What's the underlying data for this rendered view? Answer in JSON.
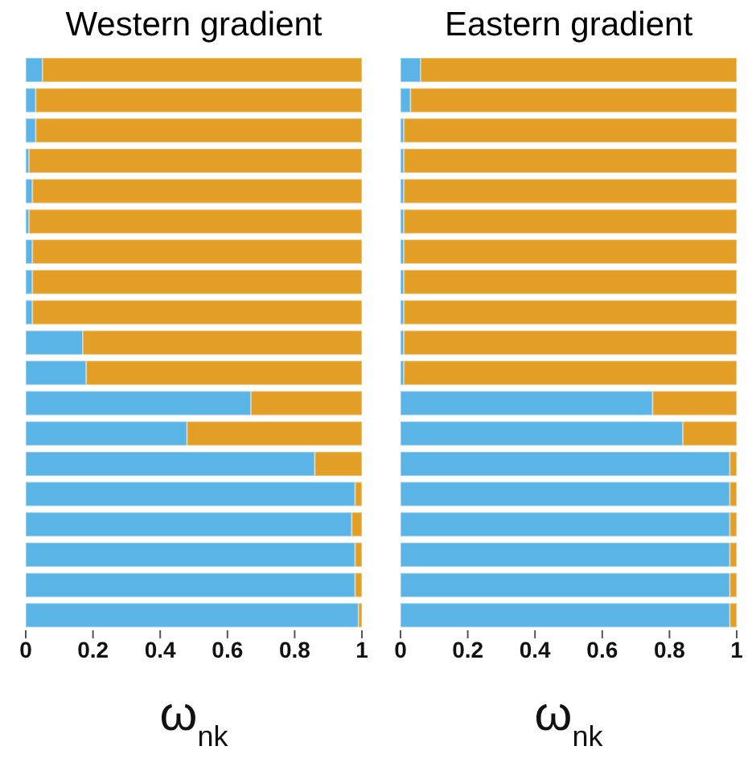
{
  "chart_data": [
    {
      "type": "bar",
      "title": "Western gradient",
      "xlabel": "ω$_{nk}$",
      "orientation": "horizontal",
      "stacked": true,
      "tick_labels": "x",
      "categories": [
        null,
        null,
        null,
        null,
        null,
        null,
        null,
        null,
        null,
        null,
        null,
        null,
        null,
        null,
        null,
        null,
        null,
        null,
        null
      ],
      "series": [
        {
          "color": "#5bb4e6",
          "values": [
            0.05,
            0.03,
            0.03,
            0.01,
            0.02,
            0.01,
            0.02,
            0.02,
            0.02,
            0.17,
            0.18,
            0.67,
            0.48,
            0.86,
            0.98,
            0.97,
            0.98,
            0.98,
            0.99
          ]
        },
        {
          "color": "#e39e26",
          "values": [
            0.95,
            0.97,
            0.97,
            0.99,
            0.98,
            0.99,
            0.98,
            0.98,
            0.98,
            0.83,
            0.82,
            0.33,
            0.52,
            0.14,
            0.02,
            0.03,
            0.02,
            0.02,
            0.01
          ]
        }
      ],
      "xlim": [
        0,
        1
      ],
      "xticks": [
        0,
        0.2,
        0.4,
        0.6,
        0.8,
        1
      ]
    },
    {
      "type": "bar",
      "title": "Eastern gradient",
      "xlabel": "ω$_{nk}$",
      "orientation": "horizontal",
      "stacked": true,
      "tick_labels": "x",
      "categories": [
        null,
        null,
        null,
        null,
        null,
        null,
        null,
        null,
        null,
        null,
        null,
        null,
        null,
        null,
        null,
        null,
        null,
        null,
        null
      ],
      "series": [
        {
          "color": "#5bb4e6",
          "values": [
            0.06,
            0.03,
            0.01,
            0.01,
            0.01,
            0.01,
            0.01,
            0.01,
            0.01,
            0.01,
            0.01,
            0.75,
            0.84,
            0.98,
            0.98,
            0.98,
            0.98,
            0.98,
            0.98
          ]
        },
        {
          "color": "#e39e26",
          "values": [
            0.94,
            0.97,
            0.99,
            0.99,
            0.99,
            0.99,
            0.99,
            0.99,
            0.99,
            0.99,
            0.99,
            0.25,
            0.16,
            0.02,
            0.02,
            0.02,
            0.02,
            0.02,
            0.02
          ]
        }
      ],
      "xlim": [
        0,
        1
      ],
      "xticks": [
        0,
        0.2,
        0.4,
        0.6,
        0.8,
        1
      ]
    }
  ]
}
